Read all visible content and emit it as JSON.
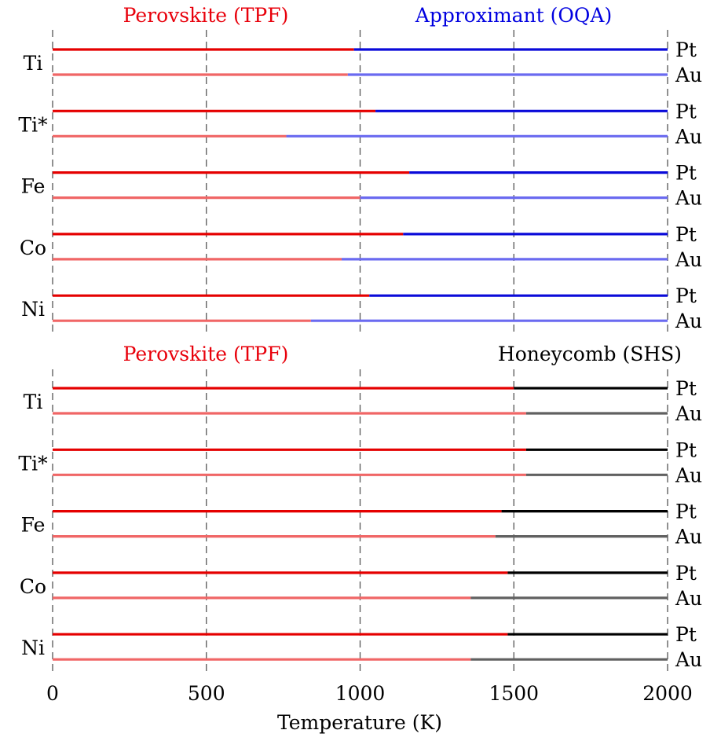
{
  "chart_data": [
    {
      "type": "bar",
      "panel": "top",
      "phase_low": {
        "label": "Perovskite (TPF)",
        "color": "#e8000b"
      },
      "phase_high": {
        "label": "Approximant (OQA)",
        "color": "#0000e0"
      },
      "colors": {
        "Pt_low": "#e50000",
        "Au_low": "#f06666",
        "Pt_high": "#0a0ad9",
        "Au_high": "#6a6af0"
      },
      "xlim": [
        0,
        2000
      ],
      "rows": [
        {
          "element": "Ti",
          "Pt": 980,
          "Au": 960
        },
        {
          "element": "Ti*",
          "Pt": 1050,
          "Au": 760
        },
        {
          "element": "Fe",
          "Pt": 1160,
          "Au": 1000
        },
        {
          "element": "Co",
          "Pt": 1140,
          "Au": 940
        },
        {
          "element": "Ni",
          "Pt": 1030,
          "Au": 840
        }
      ],
      "substrates": [
        "Pt",
        "Au"
      ]
    },
    {
      "type": "bar",
      "panel": "bottom",
      "phase_low": {
        "label": "Perovskite (TPF)",
        "color": "#e8000b"
      },
      "phase_high": {
        "label": "Honeycomb (SHS)",
        "color": "#000000"
      },
      "colors": {
        "Pt_low": "#e50000",
        "Au_low": "#f06666",
        "Pt_high": "#000000",
        "Au_high": "#606060"
      },
      "xlim": [
        0,
        2000
      ],
      "rows": [
        {
          "element": "Ti",
          "Pt": 1500,
          "Au": 1540
        },
        {
          "element": "Ti*",
          "Pt": 1540,
          "Au": 1540
        },
        {
          "element": "Fe",
          "Pt": 1460,
          "Au": 1440
        },
        {
          "element": "Co",
          "Pt": 1480,
          "Au": 1360
        },
        {
          "element": "Ni",
          "Pt": 1480,
          "Au": 1360
        }
      ],
      "substrates": [
        "Pt",
        "Au"
      ]
    }
  ],
  "axis": {
    "xlabel": "Temperature (K)",
    "ticks": [
      0,
      500,
      1000,
      1500,
      2000
    ],
    "tick_labels": [
      "0",
      "500",
      "1000",
      "1500",
      "2000"
    ]
  }
}
